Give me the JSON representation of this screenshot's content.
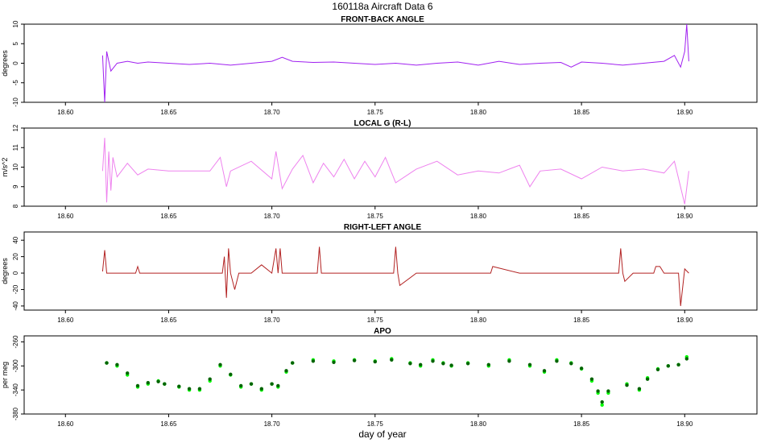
{
  "figure": {
    "title": "160118a    Aircraft Data 6",
    "xlabel": "day of year"
  },
  "chart_data": [
    {
      "type": "line",
      "title": "FRONT-BACK ANGLE",
      "ylabel": "degrees",
      "xlim": [
        18.58,
        18.935
      ],
      "ylim": [
        -10,
        10
      ],
      "yticks": [
        -10,
        -5,
        0,
        5,
        10
      ],
      "xticks": [
        18.6,
        18.65,
        18.7,
        18.75,
        18.8,
        18.85,
        18.9
      ],
      "xtick_labels": [
        "18.60",
        "18.65",
        "18.70",
        "18.75",
        "18.80",
        "18.85",
        "18.90"
      ],
      "color": "#a020f0",
      "series": [
        {
          "x": [
            18.618,
            18.619,
            18.62,
            18.622,
            18.625,
            18.63,
            18.635,
            18.64,
            18.65,
            18.66,
            18.67,
            18.68,
            18.69,
            18.7,
            18.705,
            18.71,
            18.72,
            18.73,
            18.74,
            18.75,
            18.76,
            18.77,
            18.78,
            18.79,
            18.8,
            18.81,
            18.82,
            18.83,
            18.84,
            18.845,
            18.85,
            18.86,
            18.87,
            18.88,
            18.89,
            18.895,
            18.898,
            18.9,
            18.901,
            18.902
          ],
          "y": [
            2,
            -10,
            3,
            -2,
            0,
            0.5,
            0,
            0.3,
            0,
            -0.3,
            0,
            -0.5,
            0,
            0.5,
            1.5,
            0.5,
            0.2,
            0.3,
            0,
            -0.3,
            0,
            -0.5,
            0,
            0.3,
            -0.5,
            0.5,
            -0.3,
            0,
            0.2,
            -1,
            0.3,
            0,
            -0.5,
            0,
            0.5,
            2,
            -1,
            3,
            10,
            0.5
          ]
        }
      ]
    },
    {
      "type": "line",
      "title": "LOCAL G (R-L)",
      "ylabel": "m/s^2",
      "xlim": [
        18.58,
        18.935
      ],
      "ylim": [
        8,
        12
      ],
      "yticks": [
        8,
        9,
        10,
        11,
        12
      ],
      "xticks": [
        18.6,
        18.65,
        18.7,
        18.75,
        18.8,
        18.85,
        18.9
      ],
      "xtick_labels": [
        "18.60",
        "18.65",
        "18.70",
        "18.75",
        "18.80",
        "18.85",
        "18.90"
      ],
      "color": "#ee82ee",
      "series": [
        {
          "x": [
            18.618,
            18.619,
            18.62,
            18.621,
            18.622,
            18.623,
            18.625,
            18.63,
            18.635,
            18.64,
            18.65,
            18.66,
            18.67,
            18.675,
            18.678,
            18.68,
            18.69,
            18.7,
            18.702,
            18.705,
            18.71,
            18.715,
            18.72,
            18.725,
            18.73,
            18.735,
            18.74,
            18.745,
            18.75,
            18.755,
            18.76,
            18.77,
            18.78,
            18.79,
            18.8,
            18.81,
            18.82,
            18.825,
            18.83,
            18.84,
            18.85,
            18.86,
            18.87,
            18.88,
            18.89,
            18.895,
            18.9,
            18.902
          ],
          "y": [
            9.8,
            11.5,
            8.2,
            10.8,
            8.8,
            10.5,
            9.5,
            10.2,
            9.6,
            9.9,
            9.8,
            9.8,
            9.8,
            10.5,
            9.0,
            9.8,
            10.3,
            9.4,
            10.8,
            8.9,
            9.9,
            10.6,
            9.2,
            10.2,
            9.5,
            10.4,
            9.4,
            10.3,
            9.5,
            10.5,
            9.2,
            9.9,
            10.3,
            9.6,
            9.8,
            9.7,
            10.1,
            9.0,
            9.8,
            9.9,
            9.4,
            10.0,
            9.8,
            9.9,
            9.7,
            10.3,
            8.1,
            9.8
          ]
        }
      ]
    },
    {
      "type": "line",
      "title": "RIGHT-LEFT ANGLE",
      "ylabel": "degrees",
      "xlim": [
        18.58,
        18.935
      ],
      "ylim": [
        -45,
        50
      ],
      "yticks": [
        -40,
        -20,
        0,
        20,
        40
      ],
      "xticks": [
        18.6,
        18.65,
        18.7,
        18.75,
        18.8,
        18.85,
        18.9
      ],
      "xtick_labels": [
        "18.60",
        "18.65",
        "18.70",
        "18.75",
        "18.80",
        "18.85",
        "18.90"
      ],
      "color": "#b22222",
      "series": [
        {
          "x": [
            18.618,
            18.619,
            18.62,
            18.621,
            18.625,
            18.634,
            18.635,
            18.636,
            18.65,
            18.67,
            18.676,
            18.677,
            18.678,
            18.679,
            18.68,
            18.682,
            18.684,
            18.69,
            18.695,
            18.7,
            18.702,
            18.703,
            18.704,
            18.705,
            18.71,
            18.722,
            18.723,
            18.724,
            18.725,
            18.73,
            18.745,
            18.759,
            18.76,
            18.761,
            18.762,
            18.77,
            18.78,
            18.79,
            18.8,
            18.806,
            18.807,
            18.82,
            18.84,
            18.855,
            18.868,
            18.869,
            18.87,
            18.871,
            18.875,
            18.885,
            18.886,
            18.888,
            18.89,
            18.897,
            18.898,
            18.9,
            18.902
          ],
          "y": [
            2,
            28,
            0,
            0,
            0,
            0,
            8,
            0,
            0,
            0,
            0,
            20,
            -30,
            30,
            0,
            -20,
            0,
            0,
            10,
            0,
            30,
            0,
            30,
            0,
            0,
            0,
            32,
            0,
            0,
            0,
            0,
            0,
            32,
            0,
            -15,
            0,
            0,
            0,
            0,
            0,
            8,
            0,
            0,
            0,
            0,
            30,
            0,
            -10,
            0,
            0,
            8,
            8,
            0,
            0,
            -40,
            5,
            0
          ]
        }
      ]
    },
    {
      "type": "scatter",
      "title": "APO",
      "ylabel": "per meg",
      "xlim": [
        18.58,
        18.935
      ],
      "ylim": [
        -380,
        -250
      ],
      "yticks": [
        -380,
        -340,
        -300,
        -260
      ],
      "xticks": [
        18.6,
        18.65,
        18.7,
        18.75,
        18.8,
        18.85,
        18.9
      ],
      "xtick_labels": [
        "18.60",
        "18.65",
        "18.70",
        "18.75",
        "18.80",
        "18.85",
        "18.90"
      ],
      "series": [
        {
          "color": "#00ff00",
          "x": [
            18.62,
            18.625,
            18.63,
            18.635,
            18.64,
            18.645,
            18.648,
            18.655,
            18.66,
            18.665,
            18.67,
            18.675,
            18.68,
            18.685,
            18.69,
            18.695,
            18.7,
            18.703,
            18.707,
            18.71,
            18.72,
            18.73,
            18.74,
            18.75,
            18.758,
            18.767,
            18.772,
            18.778,
            18.783,
            18.787,
            18.795,
            18.805,
            18.815,
            18.825,
            18.832,
            18.838,
            18.845,
            18.85,
            18.855,
            18.858,
            18.86,
            18.863,
            18.872,
            18.878,
            18.882,
            18.887,
            18.892,
            18.897,
            18.901
          ],
          "y": [
            -295,
            -300,
            -315,
            -335,
            -330,
            -325,
            -330,
            -335,
            -340,
            -340,
            -325,
            -300,
            -315,
            -335,
            -330,
            -340,
            -330,
            -335,
            -310,
            -295,
            -290,
            -292,
            -290,
            -292,
            -288,
            -295,
            -300,
            -290,
            -295,
            -300,
            -295,
            -300,
            -290,
            -300,
            -310,
            -290,
            -295,
            -305,
            -325,
            -345,
            -365,
            -345,
            -330,
            -340,
            -320,
            -305,
            -300,
            -298,
            -285
          ]
        },
        {
          "color": "#006400",
          "x": [
            18.62,
            18.625,
            18.63,
            18.635,
            18.64,
            18.645,
            18.648,
            18.655,
            18.66,
            18.665,
            18.67,
            18.675,
            18.68,
            18.685,
            18.69,
            18.695,
            18.7,
            18.703,
            18.707,
            18.71,
            18.72,
            18.73,
            18.74,
            18.75,
            18.758,
            18.767,
            18.772,
            18.778,
            18.783,
            18.787,
            18.795,
            18.805,
            18.815,
            18.825,
            18.832,
            18.838,
            18.845,
            18.85,
            18.855,
            18.858,
            18.86,
            18.863,
            18.872,
            18.878,
            18.882,
            18.887,
            18.892,
            18.897,
            18.901
          ],
          "y": [
            -295,
            -298,
            -312,
            -333,
            -328,
            -326,
            -330,
            -334,
            -338,
            -338,
            -322,
            -298,
            -314,
            -333,
            -330,
            -338,
            -330,
            -333,
            -308,
            -295,
            -292,
            -294,
            -291,
            -293,
            -290,
            -296,
            -298,
            -292,
            -296,
            -299,
            -296,
            -298,
            -292,
            -298,
            -308,
            -292,
            -296,
            -304,
            -322,
            -342,
            -360,
            -342,
            -332,
            -338,
            -322,
            -306,
            -300,
            -298,
            -288
          ]
        }
      ]
    }
  ]
}
